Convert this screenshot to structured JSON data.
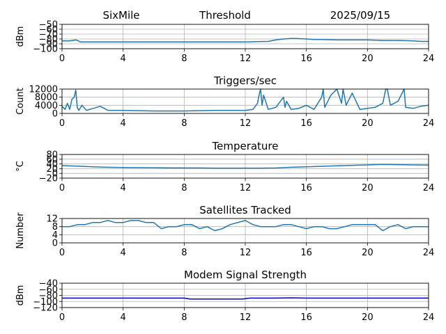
{
  "header": {
    "station": "SixMile",
    "mode": "Threshold",
    "date": "2025/09/15"
  },
  "chart_data": [
    {
      "type": "line",
      "title": "",
      "xlabel": "",
      "ylabel": "dBm",
      "xlim": [
        0,
        24
      ],
      "ylim": [
        -100,
        -50
      ],
      "xticks": [
        0,
        4,
        8,
        12,
        16,
        20,
        24
      ],
      "yticks": [
        -100,
        -90,
        -80,
        -70,
        -60,
        -50
      ],
      "ytick_labels": [
        "−100",
        "−90",
        "−80",
        "−70",
        "−60",
        "−50"
      ],
      "grid": true,
      "series": [
        {
          "color": "#1f77b4",
          "x": [
            0,
            0.5,
            0.9,
            1.0,
            1.2,
            2,
            4,
            6,
            8,
            10,
            12,
            13.5,
            14.0,
            14.5,
            15.0,
            15.3,
            16.0,
            16.5,
            17,
            18,
            19,
            20,
            21,
            22,
            23,
            23.5,
            24
          ],
          "y": [
            -84,
            -84,
            -82,
            -83,
            -86,
            -86,
            -86,
            -86,
            -86,
            -86,
            -86,
            -85,
            -82,
            -80,
            -79,
            -79,
            -80,
            -81,
            -81,
            -82,
            -82,
            -82,
            -83,
            -83,
            -84,
            -85,
            -85
          ]
        }
      ]
    },
    {
      "type": "line",
      "title": "Triggers/sec",
      "xlabel": "",
      "ylabel": "Count",
      "xlim": [
        0,
        24
      ],
      "ylim": [
        0,
        12000
      ],
      "xticks": [
        0,
        4,
        8,
        12,
        16,
        20,
        24
      ],
      "yticks": [
        0,
        4000,
        8000,
        12000
      ],
      "grid": true,
      "series": [
        {
          "color": "#1f77b4",
          "x": [
            0,
            0.2,
            0.35,
            0.5,
            0.65,
            0.8,
            0.9,
            1.0,
            1.1,
            1.3,
            1.6,
            2.5,
            3.0,
            4,
            6,
            8,
            10,
            12,
            12.5,
            12.8,
            12.9,
            13.0,
            13.1,
            13.2,
            13.5,
            14.0,
            14.5,
            14.6,
            14.7,
            15.0,
            15.5,
            16.0,
            16.5,
            17.0,
            17.1,
            17.2,
            17.6,
            18.0,
            18.3,
            18.4,
            18.6,
            19.0,
            19.5,
            20.0,
            20.5,
            21.0,
            21.2,
            21.3,
            21.5,
            22.0,
            22.4,
            22.5,
            23.0,
            23.5,
            24
          ],
          "y": [
            3500,
            2000,
            5000,
            2000,
            7000,
            8000,
            11500,
            3000,
            1500,
            4000,
            1500,
            3500,
            1500,
            1500,
            1200,
            1200,
            1500,
            1500,
            2000,
            5000,
            9000,
            12000,
            4000,
            9000,
            2000,
            3000,
            8000,
            3000,
            6000,
            2000,
            2500,
            4000,
            2000,
            8000,
            12000,
            3000,
            9000,
            12000,
            5000,
            12000,
            4000,
            10000,
            2000,
            2500,
            3000,
            5000,
            12000,
            12000,
            4000,
            6000,
            12000,
            3000,
            2500,
            3500,
            4000
          ]
        }
      ]
    },
    {
      "type": "line",
      "title": "Temperature",
      "xlabel": "",
      "ylabel": "°C",
      "xlim": [
        0,
        24
      ],
      "ylim": [
        -20,
        80
      ],
      "xticks": [
        0,
        4,
        8,
        12,
        16,
        20,
        24
      ],
      "yticks": [
        -20,
        0,
        20,
        40,
        60,
        80
      ],
      "ytick_labels": [
        "−20",
        "0",
        "20",
        "40",
        "60",
        "80"
      ],
      "grid": true,
      "series": [
        {
          "color": "#1f77b4",
          "x": [
            0,
            1,
            2,
            3,
            4,
            5,
            6,
            7,
            8,
            9,
            10,
            11,
            12,
            13,
            14,
            15,
            16,
            17,
            18,
            19,
            20,
            21,
            22,
            23,
            24
          ],
          "y": [
            33,
            31,
            28,
            26,
            25,
            24.5,
            24,
            23.5,
            23,
            23,
            22.5,
            22.5,
            22.5,
            22.5,
            23,
            26,
            28,
            30,
            32,
            34,
            36,
            38,
            37,
            36,
            35
          ]
        }
      ]
    },
    {
      "type": "line",
      "title": "Satellites Tracked",
      "xlabel": "",
      "ylabel": "Number",
      "xlim": [
        0,
        24
      ],
      "ylim": [
        0,
        12
      ],
      "xticks": [
        0,
        4,
        8,
        12,
        16,
        20,
        24
      ],
      "yticks": [
        0,
        4,
        8,
        12
      ],
      "grid": true,
      "series": [
        {
          "color": "#1f77b4",
          "x": [
            0,
            0.5,
            1.0,
            1.5,
            2.0,
            2.5,
            3.0,
            3.5,
            4.0,
            4.5,
            5.0,
            5.5,
            6.0,
            6.5,
            7.0,
            7.5,
            8.0,
            8.5,
            9.0,
            9.5,
            10.0,
            10.5,
            11.0,
            11.5,
            12.0,
            12.5,
            13.0,
            13.5,
            14.0,
            14.5,
            15.0,
            15.5,
            16.0,
            16.5,
            17.0,
            17.5,
            18.0,
            18.5,
            19.0,
            19.5,
            20.0,
            20.5,
            21.0,
            21.5,
            22.0,
            22.5,
            23.0,
            23.5,
            24
          ],
          "y": [
            8,
            8,
            9,
            9,
            10,
            10,
            11,
            10,
            10,
            11,
            11,
            10,
            10,
            7,
            8,
            8,
            9,
            9,
            7,
            8,
            6,
            7,
            9,
            10,
            11,
            9,
            8,
            8,
            8,
            9,
            9,
            8,
            7,
            8,
            8,
            7,
            7,
            8,
            9,
            9,
            9,
            9,
            6,
            8,
            9,
            7,
            8,
            8,
            8
          ]
        }
      ]
    },
    {
      "type": "line",
      "title": "Modem Signal Strength",
      "xlabel": "",
      "ylabel": "dBm",
      "xlim": [
        0,
        24
      ],
      "ylim": [
        -120,
        -40
      ],
      "xticks": [
        0,
        4,
        8,
        12,
        16,
        20,
        24
      ],
      "yticks": [
        -120,
        -100,
        -80,
        -60,
        -40
      ],
      "ytick_labels": [
        "−120",
        "−100",
        "−80",
        "−60",
        "−40"
      ],
      "grid": true,
      "series": [
        {
          "color": "#0000cc",
          "x": [
            0,
            8,
            8.4,
            10,
            11.8,
            12.3,
            14.0,
            15.0,
            16.0,
            24
          ],
          "y": [
            -89,
            -89,
            -92,
            -92,
            -92,
            -89,
            -89,
            -88,
            -89,
            -89
          ]
        }
      ]
    }
  ]
}
